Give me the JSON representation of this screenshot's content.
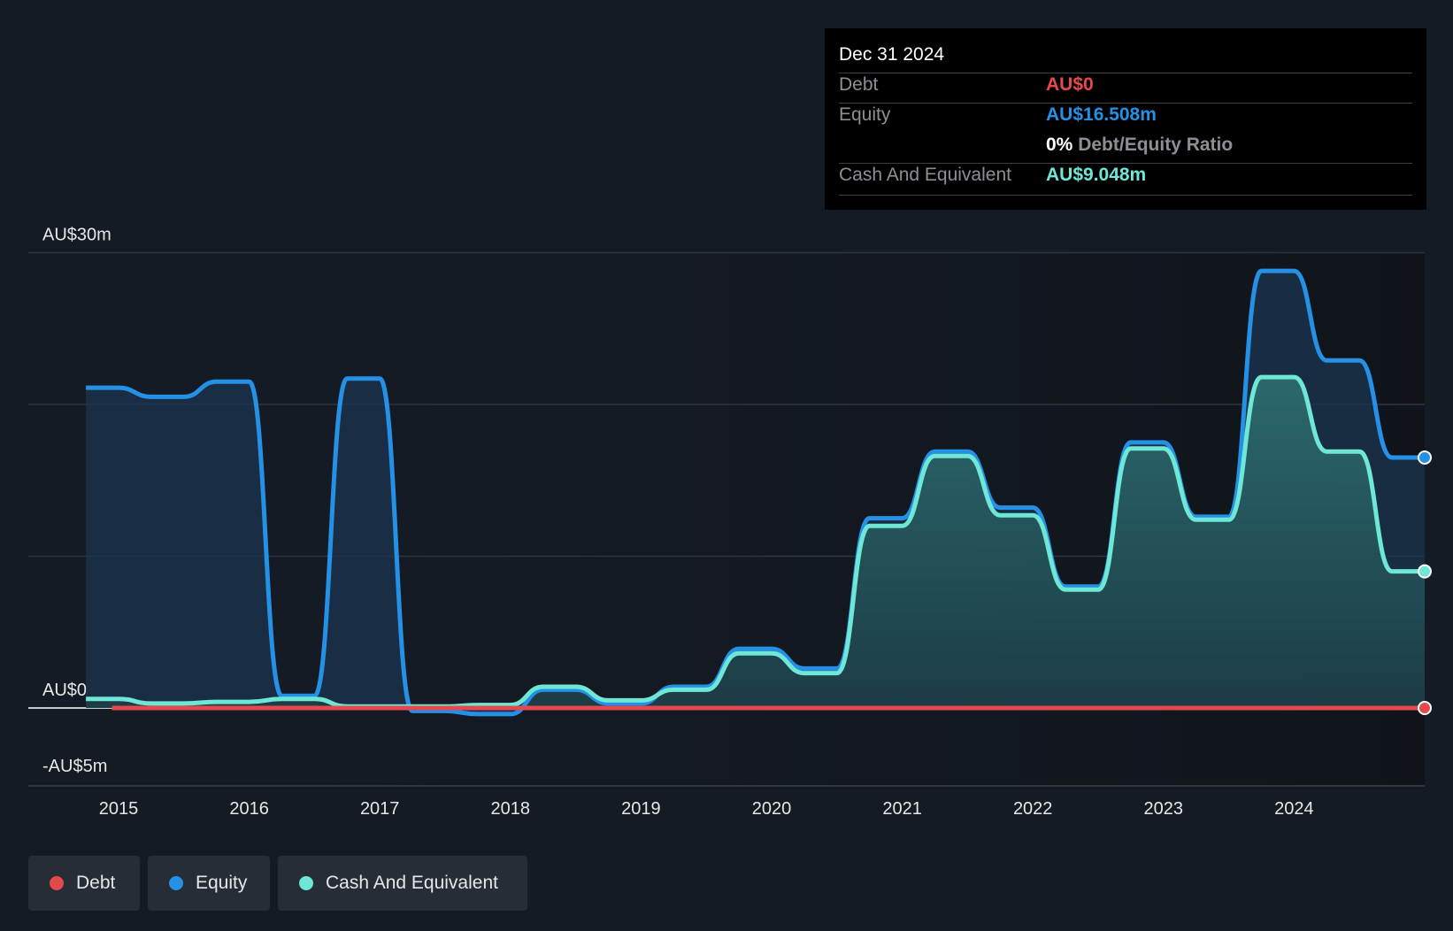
{
  "tooltip": {
    "date": "Dec 31 2024",
    "rows": [
      {
        "label": "Debt",
        "value": "AU$0"
      },
      {
        "label": "Equity",
        "value": "AU$16.508m"
      },
      {
        "label": "Cash And Equivalent",
        "value": "AU$9.048m"
      }
    ],
    "ratio_value": "0%",
    "ratio_label": "Debt/Equity Ratio"
  },
  "legend": [
    {
      "label": "Debt",
      "color": "#e5484d"
    },
    {
      "label": "Equity",
      "color": "#2491e6"
    },
    {
      "label": "Cash And Equivalent",
      "color": "#6ee7d6"
    }
  ],
  "chart_data": {
    "type": "area",
    "title": "",
    "xlabel": "",
    "ylabel": "",
    "ylim": [
      -5,
      30
    ],
    "xlim": [
      2014.7,
      2025.0
    ],
    "y_tick_labels": [
      {
        "value": 30,
        "label": "AU$30m"
      },
      {
        "value": 0,
        "label": "AU$0"
      },
      {
        "value": -5,
        "label": "-AU$5m"
      }
    ],
    "gridlines": [
      30,
      20,
      10,
      0
    ],
    "x_tick_labels": [
      "2015",
      "2016",
      "2017",
      "2018",
      "2019",
      "2020",
      "2021",
      "2022",
      "2023",
      "2024"
    ],
    "x_ticks": [
      2015,
      2016,
      2017,
      2018,
      2019,
      2020,
      2021,
      2022,
      2023,
      2024
    ],
    "grid": true,
    "legend_position": "bottom-left",
    "series": [
      {
        "name": "Debt",
        "color": "#e5484d",
        "x": [
          2014.95,
          2025.0
        ],
        "values": [
          0,
          0
        ]
      },
      {
        "name": "Equity",
        "color": "#2491e6",
        "x": [
          2014.75,
          2015.0,
          2015.25,
          2015.5,
          2015.75,
          2016.0,
          2016.25,
          2016.5,
          2016.75,
          2017.0,
          2017.25,
          2017.5,
          2017.75,
          2018.0,
          2018.25,
          2018.5,
          2018.75,
          2019.0,
          2019.25,
          2019.5,
          2019.75,
          2020.0,
          2020.25,
          2020.5,
          2020.75,
          2021.0,
          2021.25,
          2021.5,
          2021.75,
          2022.0,
          2022.25,
          2022.5,
          2022.75,
          2023.0,
          2023.25,
          2023.5,
          2023.75,
          2024.0,
          2024.25,
          2024.5,
          2024.75,
          2025.0
        ],
        "values": [
          21.1,
          21.1,
          20.5,
          20.5,
          21.5,
          21.5,
          0.8,
          0.8,
          21.7,
          21.7,
          -0.2,
          -0.2,
          -0.4,
          -0.4,
          1.2,
          1.2,
          0.3,
          0.3,
          1.4,
          1.4,
          3.9,
          3.9,
          2.6,
          2.6,
          12.5,
          12.5,
          16.9,
          16.9,
          13.2,
          13.2,
          8.0,
          8.0,
          17.5,
          17.5,
          12.6,
          12.6,
          28.8,
          28.8,
          22.9,
          22.9,
          16.5,
          16.5
        ]
      },
      {
        "name": "Cash And Equivalent",
        "color": "#6ee7d6",
        "x": [
          2014.75,
          2015.0,
          2015.25,
          2015.5,
          2015.75,
          2016.0,
          2016.25,
          2016.5,
          2016.75,
          2017.0,
          2017.25,
          2017.5,
          2017.75,
          2018.0,
          2018.25,
          2018.5,
          2018.75,
          2019.0,
          2019.25,
          2019.5,
          2019.75,
          2020.0,
          2020.25,
          2020.5,
          2020.75,
          2021.0,
          2021.25,
          2021.5,
          2021.75,
          2022.0,
          2022.25,
          2022.5,
          2022.75,
          2023.0,
          2023.25,
          2023.5,
          2023.75,
          2024.0,
          2024.25,
          2024.5,
          2024.75,
          2025.0
        ],
        "values": [
          0.6,
          0.6,
          0.3,
          0.3,
          0.4,
          0.4,
          0.6,
          0.6,
          0.1,
          0.1,
          0.1,
          0.1,
          0.2,
          0.2,
          1.4,
          1.4,
          0.5,
          0.5,
          1.2,
          1.2,
          3.6,
          3.6,
          2.3,
          2.3,
          12.0,
          12.0,
          16.6,
          16.6,
          12.7,
          12.7,
          7.8,
          7.8,
          17.1,
          17.1,
          12.4,
          12.4,
          21.8,
          21.8,
          16.9,
          16.9,
          9.0,
          9.0
        ]
      }
    ]
  }
}
